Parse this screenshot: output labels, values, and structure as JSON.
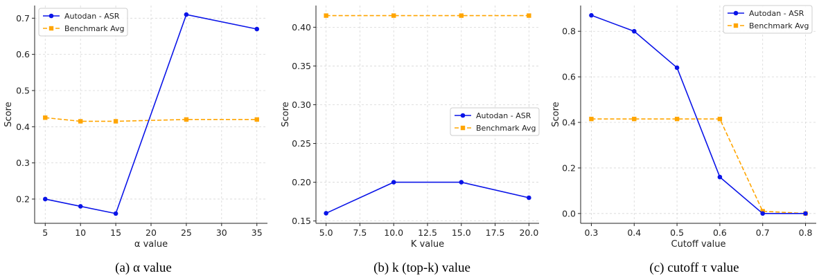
{
  "colors": {
    "asr": "#0a14e8",
    "bench": "#ffa500",
    "grid": "#d6d6d6",
    "axis": "#222222"
  },
  "chart_data": [
    {
      "type": "line",
      "caption": "(a) α value",
      "xlabel": "α value",
      "ylabel": "Score",
      "x": [
        5,
        10,
        15,
        25,
        35
      ],
      "xticks": [
        5,
        10,
        15,
        20,
        25,
        30,
        35
      ],
      "xtick_labels": [
        "5",
        "10",
        "15",
        "20",
        "25",
        "30",
        "35"
      ],
      "xlim": [
        3.5,
        36.5
      ],
      "yticks": [
        0.2,
        0.3,
        0.4,
        0.5,
        0.6,
        0.7
      ],
      "ytick_labels": [
        "0.2",
        "0.3",
        "0.4",
        "0.5",
        "0.6",
        "0.7"
      ],
      "ylim": [
        0.133,
        0.735
      ],
      "grid": true,
      "legend_position": "top-left",
      "series": [
        {
          "name": "Autodan - ASR",
          "style": "solid",
          "marker": "circle",
          "values": [
            0.2,
            0.18,
            0.16,
            0.71,
            0.67
          ]
        },
        {
          "name": "Benchmark Avg",
          "style": "dashed",
          "marker": "square",
          "values": [
            0.425,
            0.415,
            0.415,
            0.42,
            0.42
          ]
        }
      ]
    },
    {
      "type": "line",
      "caption": "(b) k (top-k) value",
      "xlabel": "K value",
      "ylabel": "Score",
      "x": [
        5.0,
        10.0,
        15.0,
        20.0
      ],
      "xticks": [
        5.0,
        7.5,
        10.0,
        12.5,
        15.0,
        17.5,
        20.0
      ],
      "xtick_labels": [
        "5.0",
        "7.5",
        "10.0",
        "12.5",
        "15.0",
        "17.5",
        "20.0"
      ],
      "xlim": [
        4.25,
        20.75
      ],
      "yticks": [
        0.15,
        0.2,
        0.25,
        0.3,
        0.35,
        0.4
      ],
      "ytick_labels": [
        "0.15",
        "0.20",
        "0.25",
        "0.30",
        "0.35",
        "0.40"
      ],
      "ylim": [
        0.147,
        0.428
      ],
      "grid": true,
      "legend_position": "center-right",
      "series": [
        {
          "name": "Autodan - ASR",
          "style": "solid",
          "marker": "circle",
          "values": [
            0.16,
            0.2,
            0.2,
            0.18
          ]
        },
        {
          "name": "Benchmark Avg",
          "style": "dashed",
          "marker": "square",
          "values": [
            0.415,
            0.415,
            0.415,
            0.415
          ]
        }
      ]
    },
    {
      "type": "line",
      "caption": "(c) cutoff τ value",
      "xlabel": "Cutoff value",
      "ylabel": "Score",
      "x": [
        0.3,
        0.4,
        0.5,
        0.6,
        0.7,
        0.8
      ],
      "xticks": [
        0.3,
        0.4,
        0.5,
        0.6,
        0.7,
        0.8
      ],
      "xtick_labels": [
        "0.3",
        "0.4",
        "0.5",
        "0.6",
        "0.7",
        "0.8"
      ],
      "xlim": [
        0.275,
        0.825
      ],
      "yticks": [
        0.0,
        0.2,
        0.4,
        0.6,
        0.8
      ],
      "ytick_labels": [
        "0.0",
        "0.2",
        "0.4",
        "0.6",
        "0.8"
      ],
      "ylim": [
        -0.043,
        0.913
      ],
      "grid": true,
      "legend_position": "top-right",
      "series": [
        {
          "name": "Autodan - ASR",
          "style": "solid",
          "marker": "circle",
          "values": [
            0.87,
            0.8,
            0.64,
            0.16,
            0.0,
            0.0
          ]
        },
        {
          "name": "Benchmark Avg",
          "style": "dashed",
          "marker": "square",
          "values": [
            0.415,
            0.415,
            0.415,
            0.415,
            0.01,
            0.0
          ]
        }
      ]
    }
  ]
}
